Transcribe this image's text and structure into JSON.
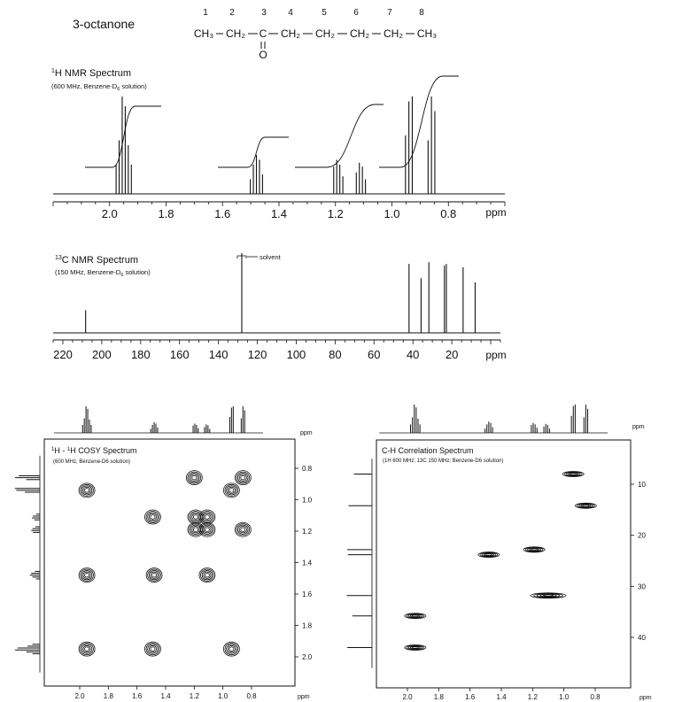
{
  "compound": {
    "name": "3-octanone",
    "carbon_numbers": [
      "1",
      "2",
      "3",
      "4",
      "5",
      "6",
      "7",
      "8"
    ],
    "formula_groups": [
      "CH₃",
      "CH₂",
      "C",
      "CH₂",
      "CH₂",
      "CH₂",
      "CH₂",
      "CH₃"
    ],
    "carbonyl_o": "O"
  },
  "h1": {
    "title_sup": "1",
    "title": "H NMR Spectrum",
    "conditions_a": "(600 MHz, Benzene-D",
    "conditions_sub": "6",
    "conditions_b": " solution)",
    "axis_unit": "ppm"
  },
  "c13": {
    "title_sup": "13",
    "title": "C NMR Spectrum",
    "conditions_a": "(150 MHz, Benzene-D",
    "conditions_sub": "6",
    "conditions_b": " solution)",
    "axis_unit": "ppm",
    "solvent_label": "solvent"
  },
  "cosy": {
    "title_sup1": "1",
    "title_mid": "H - ",
    "title_sup2": "1",
    "title_end": "H COSY Spectrum",
    "conditions": "(600 MHz, Benzene-D6 solution)",
    "axis_unit": "ppm"
  },
  "hetcor": {
    "title": "C-H Correlation Spectrum",
    "conditions": "(1H 600 MHz; 13C 150 MHz; Benzene-D6 solution)",
    "axis_unit": "ppm"
  },
  "chart_data": [
    {
      "type": "line",
      "title": "1H NMR Spectrum",
      "xlabel": "ppm",
      "xlim": [
        2.2,
        0.6
      ],
      "x_ticks": [
        "2.0",
        "1.8",
        "1.6",
        "1.4",
        "1.2",
        "1.0",
        "0.8"
      ],
      "x_tick_values": [
        2.0,
        1.8,
        1.6,
        1.4,
        1.2,
        1.0,
        0.8
      ],
      "peaks": [
        {
          "ppm": 1.95,
          "multiplet": "multiplet",
          "heights": [
            0.3,
            0.5,
            0.9,
            1.0,
            0.55,
            0.3
          ]
        },
        {
          "ppm": 1.48,
          "multiplet": "quintet",
          "heights": [
            0.2,
            0.35,
            0.4,
            0.3,
            0.15
          ]
        },
        {
          "ppm": 1.19,
          "multiplet": "multiplet",
          "heights": [
            0.18,
            0.3,
            0.35,
            0.28
          ]
        },
        {
          "ppm": 1.11,
          "multiplet": "multiplet",
          "heights": [
            0.15,
            0.28,
            0.32,
            0.22
          ]
        },
        {
          "ppm": 0.94,
          "multiplet": "triplet",
          "heights": [
            1.0,
            0.95,
            0.6
          ]
        },
        {
          "ppm": 0.86,
          "multiplet": "triplet",
          "heights": [
            0.85,
            1.0,
            0.55
          ]
        }
      ]
    },
    {
      "type": "line",
      "title": "13C NMR Spectrum",
      "xlabel": "ppm",
      "xlim": [
        225,
        -5
      ],
      "x_ticks": [
        "220",
        "200",
        "180",
        "160",
        "140",
        "120",
        "100",
        "80",
        "60",
        "40",
        "20",
        "ppm"
      ],
      "x_tick_values": [
        220,
        200,
        180,
        160,
        140,
        120,
        100,
        80,
        60,
        40,
        20
      ],
      "peaks": [
        {
          "ppm": 208.3,
          "height": 0.27
        },
        {
          "ppm": 128.0,
          "height": 0.95,
          "label": "solvent"
        },
        {
          "ppm": 42.0,
          "height": 0.82
        },
        {
          "ppm": 35.8,
          "height": 0.65
        },
        {
          "ppm": 31.8,
          "height": 0.84
        },
        {
          "ppm": 23.8,
          "height": 0.8
        },
        {
          "ppm": 22.8,
          "height": 0.82
        },
        {
          "ppm": 14.2,
          "height": 0.78
        },
        {
          "ppm": 8.0,
          "height": 0.6
        }
      ]
    },
    {
      "type": "scatter",
      "title": "1H-1H COSY Spectrum",
      "xlabel": "ppm",
      "ylabel": "ppm",
      "xlim": [
        2.1,
        0.7
      ],
      "ylim": [
        0.7,
        2.1
      ],
      "ticks": [
        "2.0",
        "1.8",
        "1.6",
        "1.4",
        "1.2",
        "1.0",
        "0.8"
      ],
      "tick_values": [
        2.0,
        1.8,
        1.6,
        1.4,
        1.2,
        1.0,
        0.8
      ],
      "cross_peaks": [
        [
          1.2,
          0.86
        ],
        [
          0.94,
          0.94
        ],
        [
          0.86,
          0.86
        ],
        [
          1.95,
          0.94
        ],
        [
          1.49,
          1.11
        ],
        [
          1.19,
          1.11
        ],
        [
          1.11,
          1.11
        ],
        [
          1.19,
          1.19
        ],
        [
          1.11,
          1.19
        ],
        [
          0.86,
          1.19
        ],
        [
          1.95,
          1.48
        ],
        [
          1.48,
          1.48
        ],
        [
          1.11,
          1.48
        ],
        [
          1.95,
          1.95
        ],
        [
          1.49,
          1.95
        ],
        [
          0.94,
          1.95
        ]
      ]
    },
    {
      "type": "scatter",
      "title": "C-H Correlation Spectrum",
      "xlabel": "ppm",
      "ylabel": "ppm",
      "xlim": [
        2.2,
        0.7
      ],
      "ylim": [
        5,
        46
      ],
      "x_ticks": [
        "2.0",
        "1.8",
        "1.6",
        "1.4",
        "1.2",
        "1.0",
        "0.8"
      ],
      "x_tick_values": [
        2.0,
        1.8,
        1.6,
        1.4,
        1.2,
        1.0,
        0.8
      ],
      "y_ticks": [
        "10",
        "20",
        "30",
        "40"
      ],
      "y_tick_values": [
        10,
        20,
        30,
        40
      ],
      "cross_peaks": [
        {
          "h": 0.94,
          "c": 8.0
        },
        {
          "h": 0.86,
          "c": 14.2
        },
        {
          "h": 1.19,
          "c": 22.8
        },
        {
          "h": 1.48,
          "c": 23.8
        },
        {
          "h": 1.1,
          "c": 31.8
        },
        {
          "h": 1.95,
          "c": 35.8
        },
        {
          "h": 1.95,
          "c": 42.0
        }
      ]
    }
  ]
}
